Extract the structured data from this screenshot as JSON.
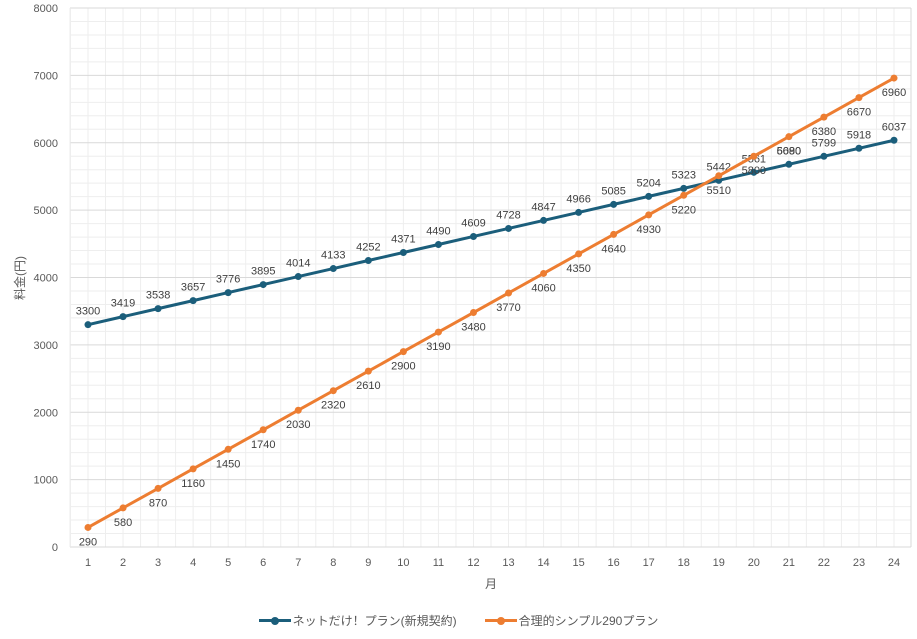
{
  "chart_data": {
    "type": "line",
    "title": "",
    "xlabel": "月",
    "ylabel": "料金(円)",
    "ylim": [
      0,
      8000
    ],
    "yticks": [
      0,
      1000,
      2000,
      3000,
      4000,
      5000,
      6000,
      7000,
      8000
    ],
    "grid": true,
    "legend_position": "bottom",
    "x": [
      1,
      2,
      3,
      4,
      5,
      6,
      7,
      8,
      9,
      10,
      11,
      12,
      13,
      14,
      15,
      16,
      17,
      18,
      19,
      20,
      21,
      22,
      23,
      24
    ],
    "series": [
      {
        "name": "ネットだけ！プラン(新規契約)",
        "color": "#1b5e7b",
        "label_position": "above",
        "values": [
          3300,
          3419,
          3538,
          3657,
          3776,
          3895,
          4014,
          4133,
          4252,
          4371,
          4490,
          4609,
          4728,
          4847,
          4966,
          5085,
          5204,
          5323,
          5442,
          5561,
          5680,
          5799,
          5918,
          6037
        ]
      },
      {
        "name": "合理的シンプル290プラン",
        "color": "#ed7d31",
        "label_position": "below",
        "values": [
          290,
          580,
          870,
          1160,
          1450,
          1740,
          2030,
          2320,
          2610,
          2900,
          3190,
          3480,
          3770,
          4060,
          4350,
          4640,
          4930,
          5220,
          5510,
          5800,
          6090,
          6380,
          6670,
          6960
        ]
      }
    ]
  },
  "legend": {
    "items": [
      {
        "label": "ネットだけ！プラン(新規契約)",
        "color": "#1b5e7b"
      },
      {
        "label": "合理的シンプル290プラン",
        "color": "#ed7d31"
      }
    ]
  }
}
